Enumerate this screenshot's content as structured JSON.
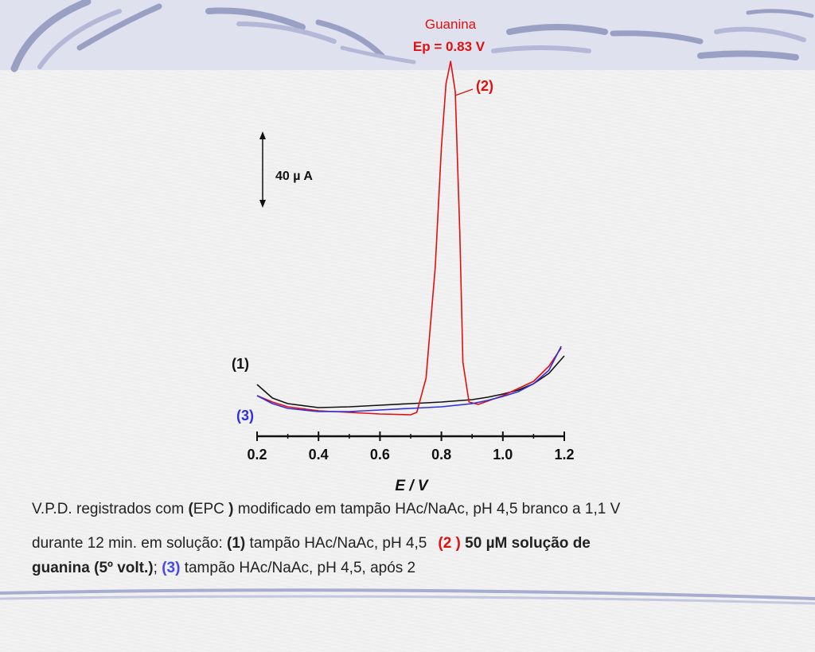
{
  "slide": {
    "colors": {
      "accent_red": "#e01010",
      "accent_blue": "#3030e0",
      "curve_black": "#111111",
      "header": "#dfe2ee"
    }
  },
  "chart_data": {
    "type": "line",
    "xlabel": "E / V",
    "ylabel": "",
    "xlim": [
      0.2,
      1.2
    ],
    "x_ticks": [
      "0.2",
      "0.4",
      "0.6",
      "0.8",
      "1.0",
      "1.2"
    ],
    "title": "Guanina",
    "peak_annotation": "Ep = 0.83 V",
    "scale_bar_label": "40 µ A",
    "series": [
      {
        "name": "(1)",
        "color": "#111111",
        "x": [
          0.2,
          0.25,
          0.3,
          0.4,
          0.5,
          0.6,
          0.7,
          0.8,
          0.9,
          0.95,
          1.0,
          1.05,
          1.1,
          1.15,
          1.2
        ],
        "y": [
          62,
          45,
          38,
          33,
          34,
          36,
          38,
          40,
          43,
          46,
          50,
          55,
          63,
          76,
          98
        ]
      },
      {
        "name": "(2)",
        "color": "#e01010",
        "x": [
          0.2,
          0.25,
          0.3,
          0.4,
          0.5,
          0.6,
          0.7,
          0.72,
          0.75,
          0.78,
          0.8,
          0.815,
          0.83,
          0.845,
          0.86,
          0.87,
          0.89,
          0.92,
          1.0,
          1.1,
          1.15,
          1.19
        ],
        "y": [
          48,
          40,
          34,
          29,
          27,
          25,
          24,
          27,
          70,
          210,
          360,
          440,
          468,
          430,
          250,
          90,
          40,
          37,
          48,
          66,
          85,
          108
        ]
      },
      {
        "name": "(3)",
        "color": "#3030e0",
        "x": [
          0.2,
          0.25,
          0.3,
          0.4,
          0.5,
          0.6,
          0.7,
          0.8,
          0.9,
          0.95,
          1.0,
          1.05,
          1.1,
          1.15,
          1.19
        ],
        "y": [
          48,
          38,
          32,
          28,
          28,
          30,
          32,
          34,
          38,
          42,
          47,
          53,
          63,
          80,
          110
        ]
      }
    ]
  },
  "caption": {
    "l1_a": "V.P.D. registrados com ",
    "l1_b": "(",
    "l1_c": "EPC ",
    "l1_d": ")",
    "l1_e": " modificado em tampão HAc/NaAc, pH 4,5 branco a 1,1 V",
    "l2_a": "durante 12 min. em solução: ",
    "l2_b": "(1)",
    "l2_c": " tampão HAc/NaAc, pH 4,5",
    "l2_d": "(2 )",
    "l2_e": " 50 µM solução de",
    "l3_a": "guanina (5º volt.)",
    "l3_b": "; ",
    "l3_c": "(3)",
    "l3_d": " tampão HAc/NaAc, pH 4,5, após 2"
  }
}
